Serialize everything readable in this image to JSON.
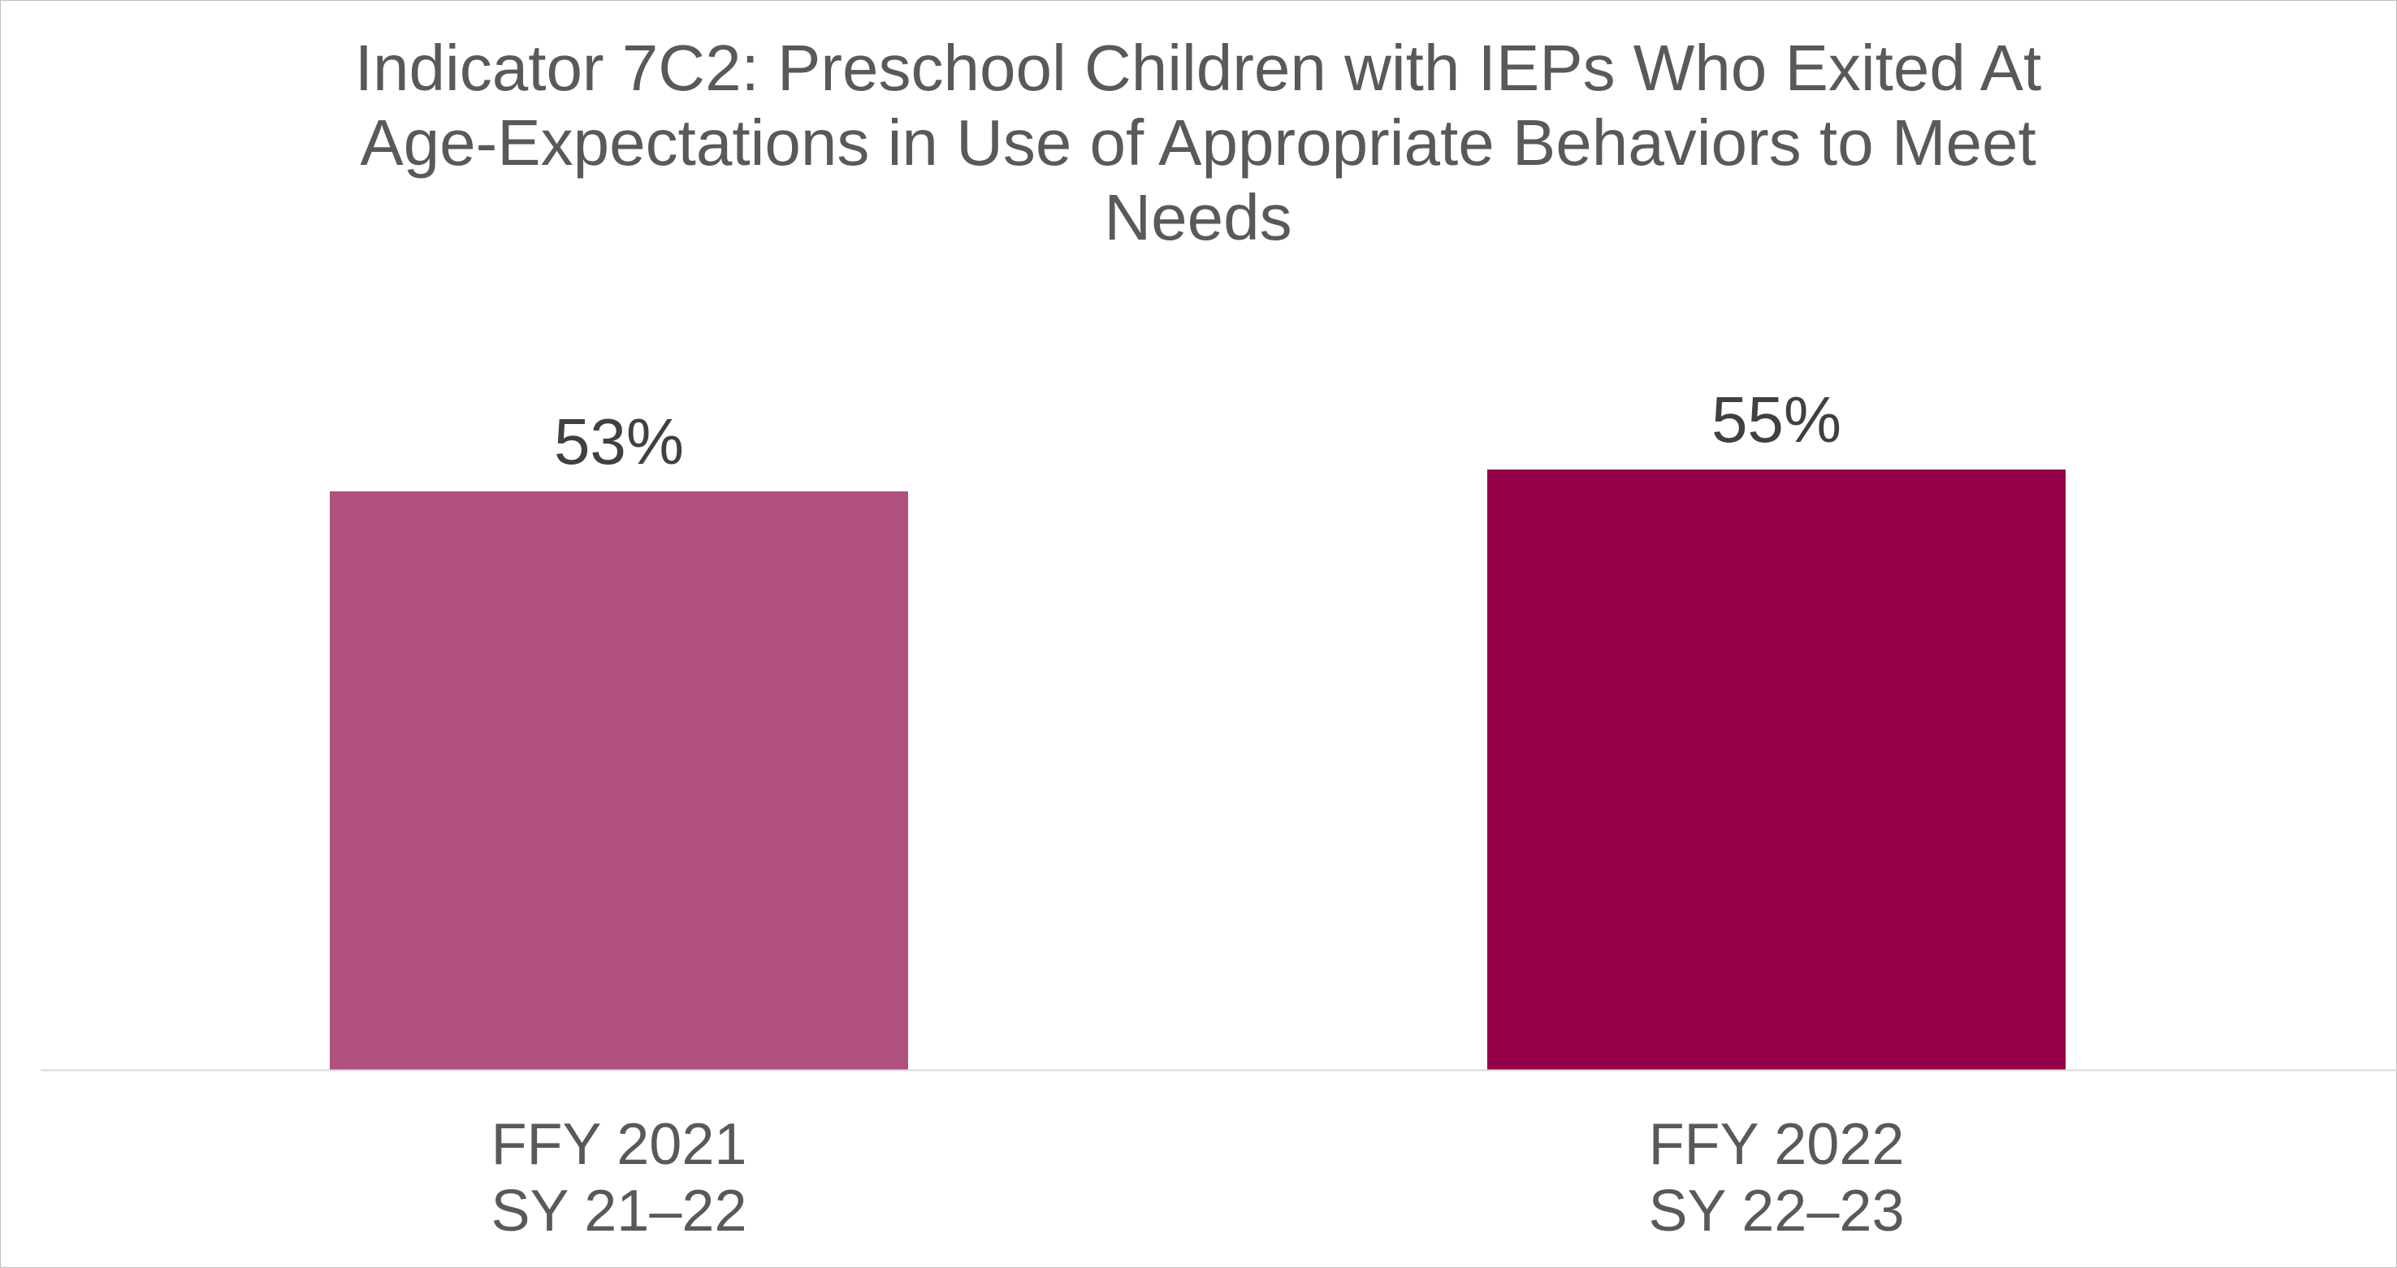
{
  "chart_data": {
    "type": "bar",
    "title_lines": [
      "Indicator 7C2: Preschool Children with IEPs Who Exited At",
      "Age-Expectations in Use of Appropriate Behaviors to Meet",
      "Needs"
    ],
    "categories": [
      [
        "FFY 2021",
        "SY 21–22"
      ],
      [
        "FFY 2022",
        "SY 22–23"
      ]
    ],
    "values": [
      53,
      55
    ],
    "data_labels": [
      "53%",
      "55%"
    ],
    "colors": [
      "#b0507e",
      "#930047"
    ],
    "ylim": [
      0,
      70
    ],
    "grid": false,
    "legend": "none",
    "xlabel": "",
    "ylabel": ""
  }
}
